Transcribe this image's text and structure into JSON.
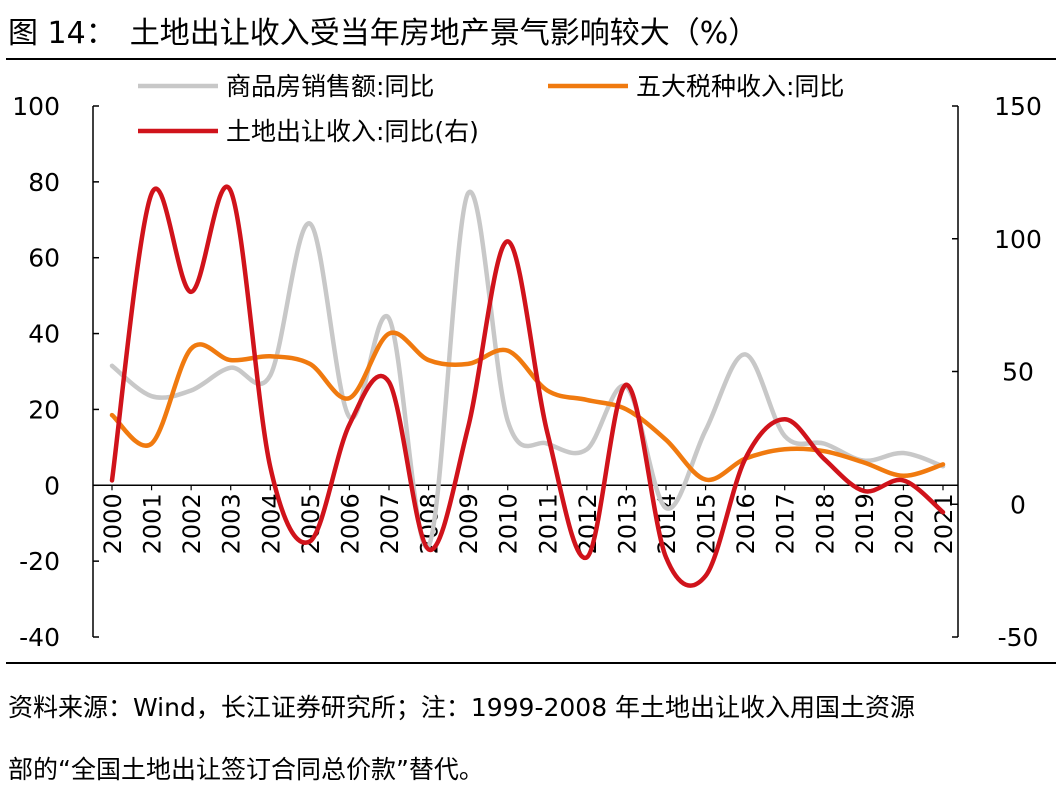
{
  "figure": {
    "label": "图 14：",
    "title": "土地出让收入受当年房地产景气影响较大（%）"
  },
  "source": {
    "line1": "资料来源：Wind，长江证券研究所；注：1999-2008 年土地出让收入用国土资源",
    "line2": "部的“全国土地出让签订合同总价款”替代。"
  },
  "chart_data": {
    "type": "line",
    "title": "土地出让收入受当年房地产景气影响较大（%）",
    "categories": [
      "2000",
      "2001",
      "2002",
      "2003",
      "2004",
      "2005",
      "2006",
      "2007",
      "2008",
      "2009",
      "2010",
      "2011",
      "2012",
      "2013",
      "2014",
      "2015",
      "2016",
      "2017",
      "2018",
      "2019",
      "2020",
      "2021"
    ],
    "left_axis": {
      "ylim": [
        -40,
        100
      ],
      "ticks": [
        100,
        80,
        60,
        40,
        20,
        0,
        -20,
        -40
      ]
    },
    "right_axis": {
      "ylim": [
        -50,
        150
      ],
      "ticks": [
        150,
        100,
        50,
        0,
        -50
      ]
    },
    "series": [
      {
        "name": "商品房销售额:同比",
        "axis": "left",
        "color": "#C8C8C8",
        "values": [
          31.5,
          23.5,
          25,
          31,
          29,
          69,
          18,
          44,
          -16,
          77,
          17,
          11,
          9.5,
          26,
          -6,
          14.5,
          34.5,
          13,
          11,
          6.5,
          8.5,
          5
        ]
      },
      {
        "name": "五大税种收入:同比",
        "axis": "left",
        "color": "#F07A0F",
        "values": [
          18.5,
          11,
          36,
          33,
          34,
          32,
          23,
          40,
          33,
          32,
          35.5,
          25,
          22.5,
          20,
          12,
          1.5,
          7,
          9.5,
          9,
          6,
          2.5,
          5.5
        ]
      },
      {
        "name": "土地出让收入:同比(右)",
        "axis": "right",
        "color": "#D0131B",
        "values": [
          9,
          117,
          80,
          118,
          14,
          -14,
          30,
          46,
          -17,
          29,
          99,
          27,
          -20,
          45,
          -20,
          -27,
          17,
          32,
          17,
          5,
          9,
          -3
        ]
      }
    ],
    "legend": {
      "position": "top"
    }
  }
}
